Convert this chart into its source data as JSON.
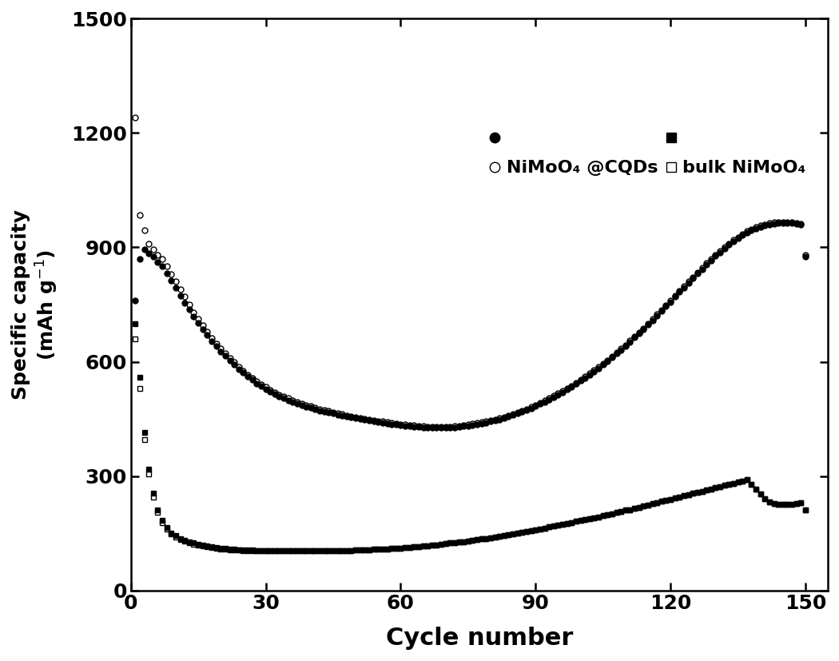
{
  "title": "",
  "xlabel": "Cycle number",
  "ylabel": "Specific capacity\n(mAh g$^{-1}$)",
  "xlim": [
    0,
    155
  ],
  "ylim": [
    0,
    1500
  ],
  "xticks": [
    0,
    30,
    60,
    90,
    120,
    150
  ],
  "yticks": [
    0,
    300,
    600,
    900,
    1200,
    1500
  ],
  "background_color": "#ffffff",
  "legend1_label": "NiMoO₄ @CQDs",
  "legend2_label": "bulk NiMoO₄",
  "NiMoO4_CQDs_discharge": {
    "cycles": [
      1,
      2,
      3,
      4,
      5,
      6,
      7,
      8,
      9,
      10,
      11,
      12,
      13,
      14,
      15,
      16,
      17,
      18,
      19,
      20,
      21,
      22,
      23,
      24,
      25,
      26,
      27,
      28,
      29,
      30,
      31,
      32,
      33,
      34,
      35,
      36,
      37,
      38,
      39,
      40,
      41,
      42,
      43,
      44,
      45,
      46,
      47,
      48,
      49,
      50,
      51,
      52,
      53,
      54,
      55,
      56,
      57,
      58,
      59,
      60,
      61,
      62,
      63,
      64,
      65,
      66,
      67,
      68,
      69,
      70,
      71,
      72,
      73,
      74,
      75,
      76,
      77,
      78,
      79,
      80,
      81,
      82,
      83,
      84,
      85,
      86,
      87,
      88,
      89,
      90,
      91,
      92,
      93,
      94,
      95,
      96,
      97,
      98,
      99,
      100,
      101,
      102,
      103,
      104,
      105,
      106,
      107,
      108,
      109,
      110,
      111,
      112,
      113,
      114,
      115,
      116,
      117,
      118,
      119,
      120,
      121,
      122,
      123,
      124,
      125,
      126,
      127,
      128,
      129,
      130,
      131,
      132,
      133,
      134,
      135,
      136,
      137,
      138,
      139,
      140,
      141,
      142,
      143,
      144,
      145,
      146,
      147,
      148,
      149,
      150
    ],
    "capacity": [
      1240,
      985,
      945,
      910,
      895,
      880,
      870,
      850,
      830,
      810,
      790,
      770,
      750,
      730,
      712,
      695,
      678,
      662,
      648,
      635,
      622,
      610,
      598,
      587,
      576,
      566,
      557,
      548,
      540,
      533,
      526,
      520,
      514,
      509,
      504,
      499,
      494,
      490,
      486,
      483,
      479,
      476,
      473,
      470,
      467,
      464,
      462,
      459,
      457,
      455,
      453,
      450,
      448,
      446,
      444,
      443,
      441,
      439,
      438,
      436,
      435,
      434,
      433,
      432,
      431,
      430,
      429,
      429,
      429,
      430,
      430,
      431,
      432,
      434,
      435,
      437,
      439,
      441,
      443,
      446,
      449,
      452,
      455,
      459,
      463,
      467,
      471,
      476,
      481,
      486,
      492,
      498,
      504,
      510,
      517,
      523,
      530,
      537,
      545,
      553,
      561,
      569,
      577,
      586,
      595,
      604,
      614,
      624,
      634,
      644,
      655,
      666,
      677,
      688,
      700,
      712,
      724,
      736,
      748,
      760,
      773,
      786,
      798,
      810,
      822,
      834,
      846,
      858,
      869,
      880,
      890,
      900,
      910,
      919,
      927,
      935,
      942,
      948,
      953,
      957,
      960,
      963,
      965,
      966,
      967,
      967,
      966,
      964,
      962,
      880
    ]
  },
  "NiMoO4_CQDs_charge": {
    "cycles": [
      1,
      2,
      3,
      4,
      5,
      6,
      7,
      8,
      9,
      10,
      11,
      12,
      13,
      14,
      15,
      16,
      17,
      18,
      19,
      20,
      21,
      22,
      23,
      24,
      25,
      26,
      27,
      28,
      29,
      30,
      31,
      32,
      33,
      34,
      35,
      36,
      37,
      38,
      39,
      40,
      41,
      42,
      43,
      44,
      45,
      46,
      47,
      48,
      49,
      50,
      51,
      52,
      53,
      54,
      55,
      56,
      57,
      58,
      59,
      60,
      61,
      62,
      63,
      64,
      65,
      66,
      67,
      68,
      69,
      70,
      71,
      72,
      73,
      74,
      75,
      76,
      77,
      78,
      79,
      80,
      81,
      82,
      83,
      84,
      85,
      86,
      87,
      88,
      89,
      90,
      91,
      92,
      93,
      94,
      95,
      96,
      97,
      98,
      99,
      100,
      101,
      102,
      103,
      104,
      105,
      106,
      107,
      108,
      109,
      110,
      111,
      112,
      113,
      114,
      115,
      116,
      117,
      118,
      119,
      120,
      121,
      122,
      123,
      124,
      125,
      126,
      127,
      128,
      129,
      130,
      131,
      132,
      133,
      134,
      135,
      136,
      137,
      138,
      139,
      140,
      141,
      142,
      143,
      144,
      145,
      146,
      147,
      148,
      149,
      150
    ],
    "capacity": [
      760,
      870,
      895,
      885,
      875,
      862,
      850,
      832,
      812,
      793,
      774,
      755,
      737,
      719,
      702,
      685,
      670,
      654,
      640,
      627,
      615,
      603,
      592,
      581,
      571,
      561,
      552,
      543,
      535,
      527,
      521,
      515,
      509,
      504,
      499,
      494,
      490,
      486,
      482,
      479,
      475,
      472,
      469,
      467,
      464,
      461,
      459,
      456,
      454,
      452,
      450,
      447,
      445,
      443,
      441,
      440,
      438,
      436,
      435,
      433,
      432,
      431,
      430,
      429,
      428,
      427,
      426,
      426,
      426,
      427,
      427,
      428,
      429,
      431,
      432,
      434,
      436,
      438,
      440,
      443,
      446,
      449,
      452,
      456,
      460,
      464,
      468,
      473,
      478,
      483,
      489,
      495,
      501,
      507,
      514,
      520,
      527,
      534,
      542,
      550,
      558,
      566,
      574,
      583,
      592,
      601,
      611,
      621,
      631,
      641,
      652,
      663,
      674,
      685,
      697,
      709,
      721,
      733,
      745,
      757,
      770,
      783,
      795,
      807,
      819,
      831,
      843,
      855,
      866,
      877,
      887,
      897,
      907,
      916,
      924,
      932,
      939,
      945,
      950,
      954,
      957,
      960,
      962,
      963,
      964,
      964,
      963,
      961,
      959,
      876
    ]
  },
  "bulk_NiMoO4_discharge": {
    "cycles": [
      1,
      2,
      3,
      4,
      5,
      6,
      7,
      8,
      9,
      10,
      11,
      12,
      13,
      14,
      15,
      16,
      17,
      18,
      19,
      20,
      21,
      22,
      23,
      24,
      25,
      26,
      27,
      28,
      29,
      30,
      31,
      32,
      33,
      34,
      35,
      36,
      37,
      38,
      39,
      40,
      41,
      42,
      43,
      44,
      45,
      46,
      47,
      48,
      49,
      50,
      51,
      52,
      53,
      54,
      55,
      56,
      57,
      58,
      59,
      60,
      61,
      62,
      63,
      64,
      65,
      66,
      67,
      68,
      69,
      70,
      71,
      72,
      73,
      74,
      75,
      76,
      77,
      78,
      79,
      80,
      81,
      82,
      83,
      84,
      85,
      86,
      87,
      88,
      89,
      90,
      91,
      92,
      93,
      94,
      95,
      96,
      97,
      98,
      99,
      100,
      101,
      102,
      103,
      104,
      105,
      106,
      107,
      108,
      109,
      110,
      111,
      112,
      113,
      114,
      115,
      116,
      117,
      118,
      119,
      120,
      121,
      122,
      123,
      124,
      125,
      126,
      127,
      128,
      129,
      130,
      131,
      132,
      133,
      134,
      135,
      136,
      137,
      138,
      139,
      140,
      141,
      142,
      143,
      144,
      145,
      146,
      147,
      148,
      149,
      150
    ],
    "capacity": [
      660,
      530,
      395,
      305,
      245,
      205,
      178,
      160,
      148,
      140,
      134,
      129,
      125,
      121,
      118,
      116,
      114,
      112,
      110,
      109,
      108,
      107,
      106,
      106,
      105,
      105,
      104,
      104,
      104,
      104,
      103,
      103,
      103,
      103,
      103,
      103,
      103,
      103,
      103,
      103,
      103,
      104,
      104,
      104,
      104,
      104,
      105,
      105,
      105,
      106,
      106,
      107,
      107,
      108,
      108,
      109,
      109,
      110,
      110,
      111,
      112,
      113,
      114,
      115,
      116,
      117,
      118,
      119,
      121,
      122,
      124,
      125,
      127,
      128,
      130,
      131,
      133,
      135,
      136,
      138,
      140,
      142,
      144,
      146,
      148,
      150,
      152,
      154,
      156,
      159,
      161,
      163,
      166,
      168,
      171,
      173,
      176,
      178,
      181,
      183,
      186,
      188,
      191,
      193,
      196,
      199,
      201,
      204,
      207,
      210,
      212,
      215,
      218,
      221,
      224,
      227,
      230,
      233,
      236,
      239,
      242,
      245,
      248,
      251,
      254,
      257,
      260,
      263,
      266,
      269,
      272,
      275,
      278,
      281,
      284,
      287,
      290,
      278,
      265,
      252,
      240,
      232,
      228,
      226,
      225,
      225,
      226,
      228,
      229,
      210
    ]
  },
  "bulk_NiMoO4_charge": {
    "cycles": [
      1,
      2,
      3,
      4,
      5,
      6,
      7,
      8,
      9,
      10,
      11,
      12,
      13,
      14,
      15,
      16,
      17,
      18,
      19,
      20,
      21,
      22,
      23,
      24,
      25,
      26,
      27,
      28,
      29,
      30,
      31,
      32,
      33,
      34,
      35,
      36,
      37,
      38,
      39,
      40,
      41,
      42,
      43,
      44,
      45,
      46,
      47,
      48,
      49,
      50,
      51,
      52,
      53,
      54,
      55,
      56,
      57,
      58,
      59,
      60,
      61,
      62,
      63,
      64,
      65,
      66,
      67,
      68,
      69,
      70,
      71,
      72,
      73,
      74,
      75,
      76,
      77,
      78,
      79,
      80,
      81,
      82,
      83,
      84,
      85,
      86,
      87,
      88,
      89,
      90,
      91,
      92,
      93,
      94,
      95,
      96,
      97,
      98,
      99,
      100,
      101,
      102,
      103,
      104,
      105,
      106,
      107,
      108,
      109,
      110,
      111,
      112,
      113,
      114,
      115,
      116,
      117,
      118,
      119,
      120,
      121,
      122,
      123,
      124,
      125,
      126,
      127,
      128,
      129,
      130,
      131,
      132,
      133,
      134,
      135,
      136,
      137,
      138,
      139,
      140,
      141,
      142,
      143,
      144,
      145,
      146,
      147,
      148,
      149,
      150
    ],
    "capacity": [
      700,
      560,
      415,
      318,
      255,
      212,
      183,
      164,
      151,
      143,
      136,
      131,
      127,
      124,
      121,
      118,
      116,
      114,
      112,
      111,
      110,
      109,
      108,
      107,
      107,
      106,
      106,
      105,
      105,
      105,
      104,
      104,
      104,
      104,
      103,
      103,
      103,
      103,
      103,
      103,
      103,
      104,
      104,
      104,
      104,
      104,
      105,
      105,
      105,
      106,
      106,
      107,
      107,
      108,
      108,
      109,
      109,
      110,
      110,
      111,
      112,
      113,
      114,
      115,
      116,
      117,
      118,
      119,
      121,
      122,
      124,
      125,
      127,
      128,
      130,
      131,
      133,
      135,
      136,
      138,
      140,
      142,
      144,
      146,
      148,
      150,
      152,
      154,
      156,
      159,
      161,
      163,
      166,
      168,
      171,
      173,
      176,
      178,
      181,
      183,
      186,
      188,
      191,
      193,
      196,
      199,
      201,
      204,
      207,
      210,
      212,
      215,
      218,
      221,
      224,
      227,
      230,
      233,
      236,
      239,
      242,
      245,
      248,
      251,
      254,
      257,
      260,
      263,
      266,
      269,
      272,
      275,
      278,
      281,
      284,
      287,
      290,
      278,
      265,
      252,
      240,
      232,
      228,
      226,
      225,
      225,
      226,
      228,
      229,
      210
    ]
  }
}
